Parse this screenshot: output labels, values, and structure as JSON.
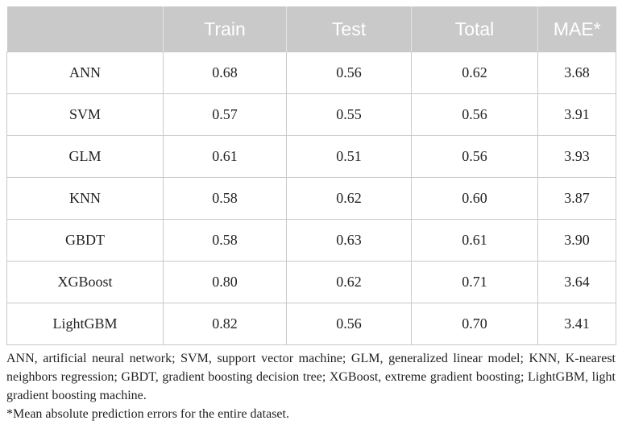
{
  "table": {
    "columns": [
      "Train",
      "Test",
      "Total",
      "MAE*"
    ],
    "rows": [
      [
        "ANN",
        "0.68",
        "0.56",
        "0.62",
        "3.68"
      ],
      [
        "SVM",
        "0.57",
        "0.55",
        "0.56",
        "3.91"
      ],
      [
        "GLM",
        "0.61",
        "0.51",
        "0.56",
        "3.93"
      ],
      [
        "KNN",
        "0.58",
        "0.62",
        "0.60",
        "3.87"
      ],
      [
        "GBDT",
        "0.58",
        "0.63",
        "0.61",
        "3.90"
      ],
      [
        "XGBoost",
        "0.80",
        "0.62",
        "0.71",
        "3.64"
      ],
      [
        "LightGBM",
        "0.82",
        "0.56",
        "0.70",
        "3.41"
      ]
    ]
  },
  "footnotes": [
    "ANN, artificial neural network; SVM, support vector machine; GLM, generalized linear model; KNN, K-nearest neighbors regression; GBDT, gradient boosting decision tree; XGBoost, extreme gradient boosting; LightGBM, light gradient boosting machine.",
    "*Mean absolute prediction errors for the entire dataset."
  ]
}
